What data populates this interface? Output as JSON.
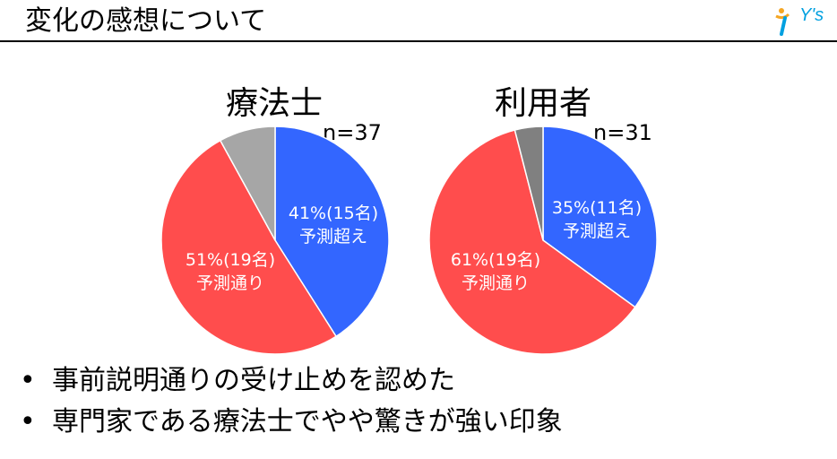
{
  "slide": {
    "title": "変化の感想について",
    "logo_text": "Y's",
    "bullets": [
      "事前説明通りの受け止めを認めた",
      "専門家である療法士でやや驚きが強い印象"
    ],
    "bullet_mark": "•"
  },
  "colors": {
    "exceeded": "#3366ff",
    "as_expected": "#ff4d4d",
    "other_1": "#a6a6a6",
    "other_2": "#808080",
    "logo": "#00a0e0"
  },
  "chart_data": [
    {
      "type": "pie",
      "title": "療法士",
      "n_label": "n=37",
      "slices": [
        {
          "label_line1": "41%(15名)",
          "label_line2": "予測超え",
          "value": 41,
          "color": "#3366ff"
        },
        {
          "label_line1": "51%(19名)",
          "label_line2": "予測通り",
          "value": 51,
          "color": "#ff4d4d"
        },
        {
          "label_line1": "",
          "label_line2": "",
          "value": 8,
          "color": "#a6a6a6"
        }
      ]
    },
    {
      "type": "pie",
      "title": "利用者",
      "n_label": "n=31",
      "slices": [
        {
          "label_line1": "35%(11名)",
          "label_line2": "予測超え",
          "value": 35,
          "color": "#3366ff"
        },
        {
          "label_line1": "61%(19名)",
          "label_line2": "予測通り",
          "value": 61,
          "color": "#ff4d4d"
        },
        {
          "label_line1": "",
          "label_line2": "",
          "value": 4,
          "color": "#808080"
        }
      ]
    }
  ]
}
